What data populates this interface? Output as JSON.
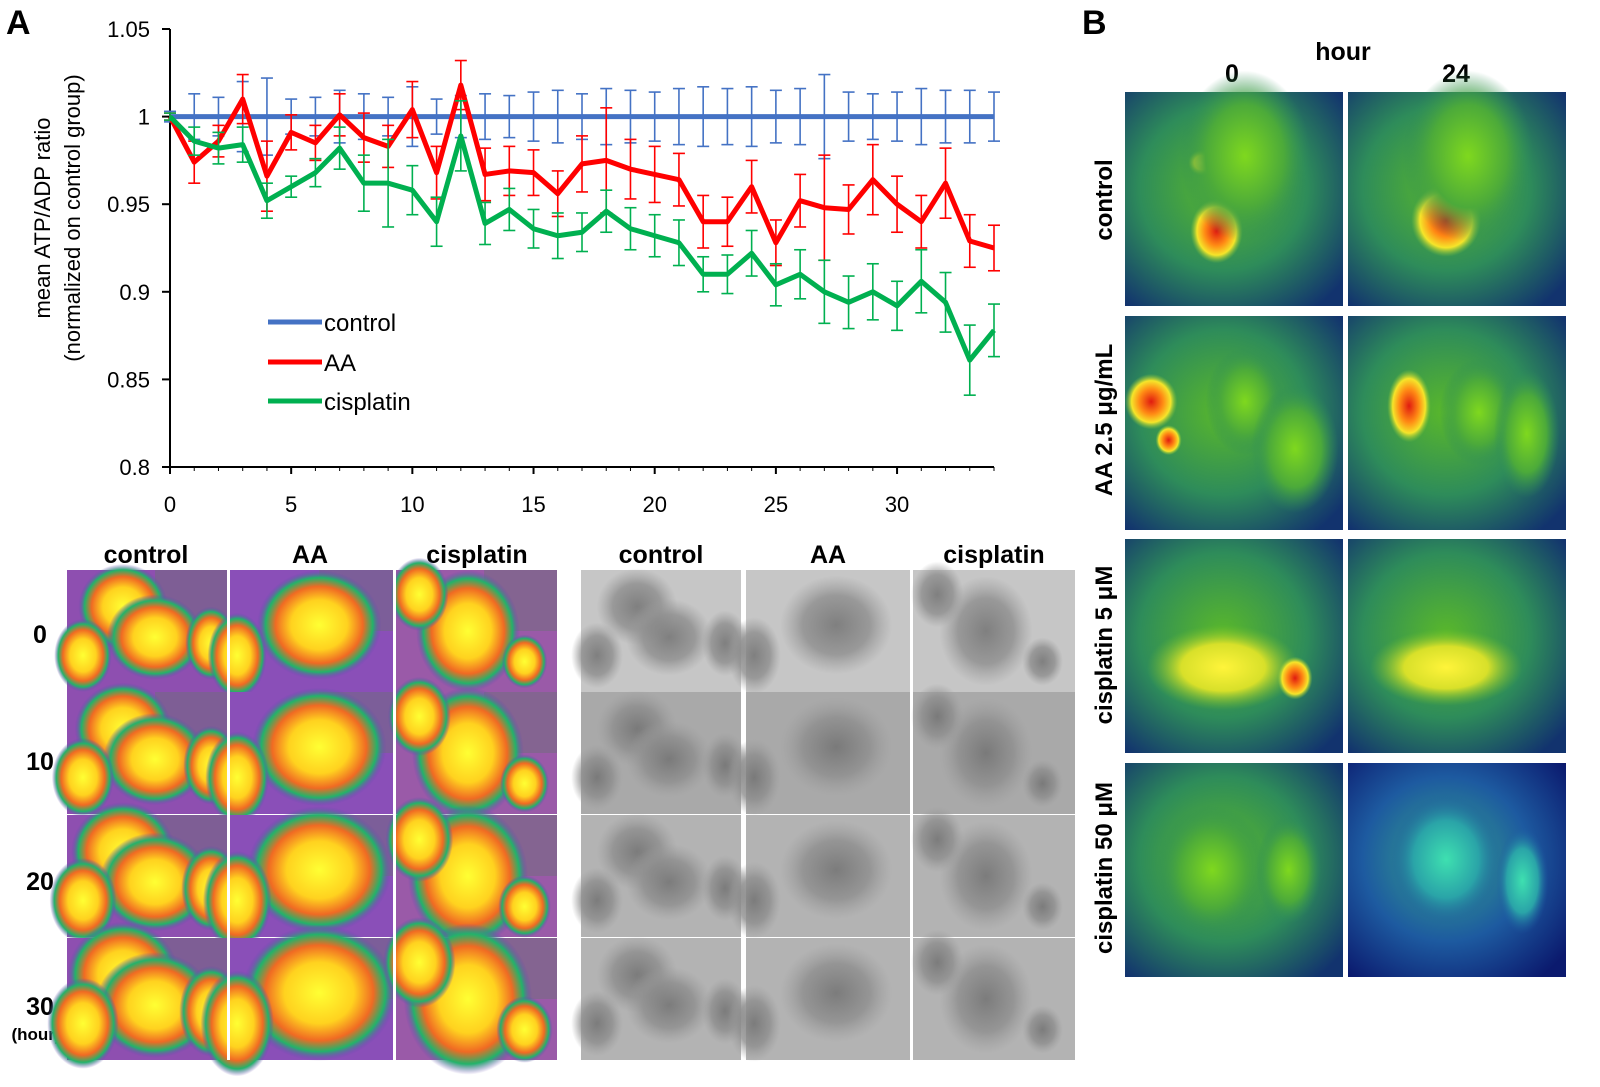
{
  "panels": {
    "a_label": "A",
    "b_label": "B"
  },
  "chart_data": {
    "type": "line",
    "title": "",
    "xlabel": "",
    "ylabel": "mean ATP/ADP ratio",
    "ylabel_line2": "(normalized on control group)",
    "xlim": [
      0,
      34
    ],
    "ylim": [
      0.8,
      1.05
    ],
    "xticks": [
      0,
      5,
      10,
      15,
      20,
      25,
      30
    ],
    "xtick_labels": [
      "0",
      "5",
      "10",
      "15",
      "20",
      "25",
      "30"
    ],
    "yticks": [
      0.8,
      0.85,
      0.9,
      0.95,
      1.0,
      1.05
    ],
    "ytick_labels": [
      "0.8",
      "0.85",
      "0.9",
      "0.95",
      "1",
      "1.05"
    ],
    "legend_position": "center-left",
    "x": [
      0,
      1,
      2,
      3,
      4,
      5,
      6,
      7,
      8,
      9,
      10,
      11,
      12,
      13,
      14,
      15,
      16,
      17,
      18,
      19,
      20,
      21,
      22,
      23,
      24,
      25,
      26,
      27,
      28,
      29,
      30,
      31,
      32,
      33,
      34
    ],
    "series": [
      {
        "name": "control",
        "color": "#4472c4",
        "values": [
          1,
          1,
          1,
          1,
          1,
          1,
          1,
          1,
          1,
          1,
          1,
          1,
          1,
          1,
          1,
          1,
          1,
          1,
          1,
          1,
          1,
          1,
          1,
          1,
          1,
          1,
          1,
          1,
          1,
          1,
          1,
          1,
          1,
          1,
          1
        ],
        "errors": [
          0.003,
          0.013,
          0.011,
          0.02,
          0.022,
          0.01,
          0.011,
          0.015,
          0.013,
          0.011,
          0.017,
          0.01,
          0.012,
          0.013,
          0.012,
          0.014,
          0.015,
          0.013,
          0.016,
          0.015,
          0.014,
          0.016,
          0.017,
          0.016,
          0.017,
          0.015,
          0.016,
          0.024,
          0.014,
          0.013,
          0.014,
          0.016,
          0.015,
          0.015,
          0.014
        ]
      },
      {
        "name": "AA",
        "color": "#ff0000",
        "values": [
          1.0,
          0.974,
          0.986,
          1.01,
          0.966,
          0.991,
          0.985,
          1.001,
          0.988,
          0.983,
          1.004,
          0.968,
          1.018,
          0.967,
          0.969,
          0.968,
          0.956,
          0.973,
          0.975,
          0.97,
          0.967,
          0.964,
          0.94,
          0.94,
          0.96,
          0.928,
          0.952,
          0.948,
          0.947,
          0.964,
          0.95,
          0.94,
          0.962,
          0.929,
          0.925
        ],
        "errors": [
          0.002,
          0.012,
          0.009,
          0.014,
          0.02,
          0.01,
          0.01,
          0.012,
          0.014,
          0.012,
          0.016,
          0.015,
          0.014,
          0.015,
          0.014,
          0.013,
          0.013,
          0.016,
          0.03,
          0.017,
          0.016,
          0.015,
          0.015,
          0.014,
          0.015,
          0.013,
          0.015,
          0.03,
          0.014,
          0.02,
          0.016,
          0.015,
          0.02,
          0.015,
          0.013
        ]
      },
      {
        "name": "cisplatin",
        "color": "#00b050",
        "values": [
          1.0,
          0.986,
          0.982,
          0.984,
          0.952,
          0.96,
          0.968,
          0.982,
          0.962,
          0.962,
          0.958,
          0.94,
          0.989,
          0.939,
          0.947,
          0.936,
          0.932,
          0.934,
          0.946,
          0.936,
          0.932,
          0.928,
          0.91,
          0.91,
          0.922,
          0.904,
          0.91,
          0.9,
          0.894,
          0.9,
          0.892,
          0.906,
          0.894,
          0.861,
          0.878
        ],
        "errors": [
          0.002,
          0.008,
          0.009,
          0.01,
          0.01,
          0.006,
          0.008,
          0.012,
          0.016,
          0.025,
          0.014,
          0.014,
          0.02,
          0.012,
          0.012,
          0.011,
          0.013,
          0.011,
          0.012,
          0.012,
          0.012,
          0.013,
          0.01,
          0.011,
          0.013,
          0.012,
          0.014,
          0.018,
          0.015,
          0.016,
          0.014,
          0.018,
          0.017,
          0.02,
          0.015
        ]
      }
    ]
  },
  "timelapse": {
    "fluorescence_columns": [
      "control",
      "AA",
      "cisplatin"
    ],
    "brightfield_columns": [
      "control",
      "AA",
      "cisplatin"
    ],
    "rows": [
      "0",
      "10",
      "20",
      "30"
    ],
    "unit_label": "(hour)"
  },
  "panel_b": {
    "header": "hour",
    "columns": [
      "0",
      "24"
    ],
    "rows": [
      "control",
      "AA 2.5 μg/mL",
      "cisplatin 5 μM",
      "cisplatin 50 μM"
    ]
  }
}
